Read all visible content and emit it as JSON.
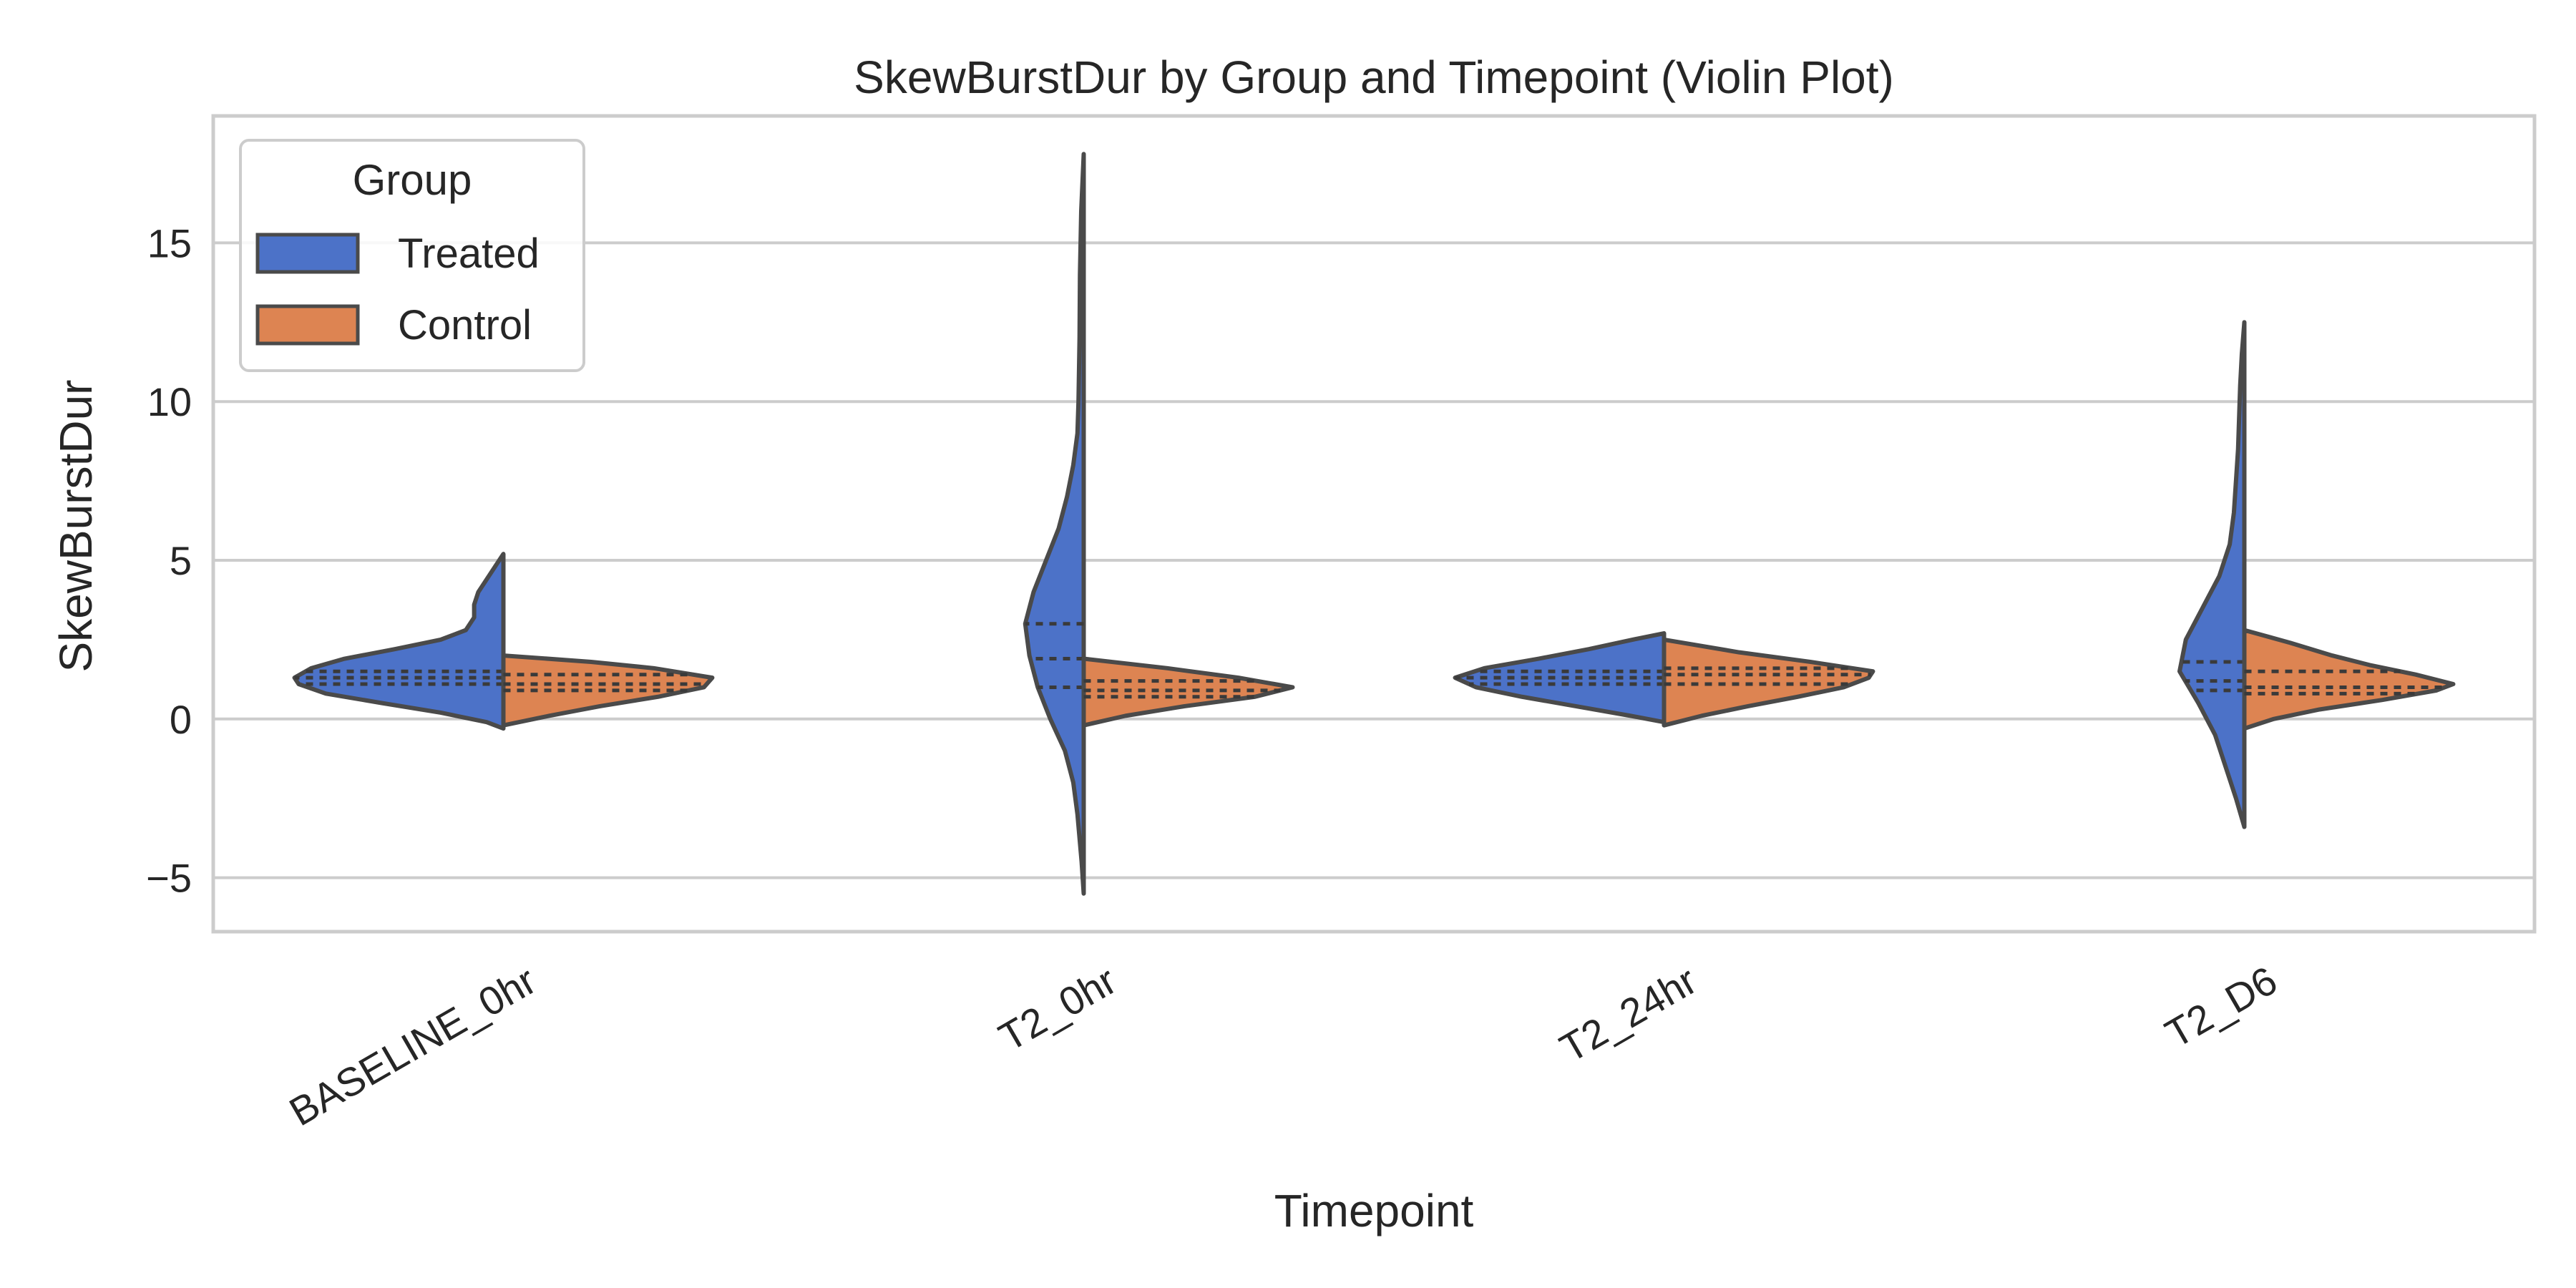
{
  "chart_data": {
    "type": "violin",
    "title": "SkewBurstDur by Group and Timepoint (Violin Plot)",
    "xlabel": "Timepoint",
    "ylabel": "SkewBurstDur",
    "categories": [
      "BASELINE_0hr",
      "T2_0hr",
      "T2_24hr",
      "T2_D6"
    ],
    "ylim": [
      -6.7,
      19.0
    ],
    "yticks": [
      -5,
      0,
      5,
      10,
      15
    ],
    "ytick_labels": [
      "−5",
      "0",
      "5",
      "10",
      "15"
    ],
    "grid": true,
    "split": true,
    "inner": "quartile",
    "legend": {
      "title": "Group",
      "placement": "top-left"
    },
    "colors": {
      "Treated": "#4c72c8",
      "Control": "#dd8452"
    },
    "series": [
      {
        "name": "Treated",
        "side": "left",
        "violins": [
          {
            "category": "BASELINE_0hr",
            "min": -0.3,
            "max": 5.2,
            "quartiles": [
              1.1,
              1.3,
              1.5
            ],
            "profile": [
              [
                -0.3,
                0.0
              ],
              [
                -0.1,
                0.08
              ],
              [
                0.2,
                0.3
              ],
              [
                0.5,
                0.58
              ],
              [
                0.8,
                0.85
              ],
              [
                1.1,
                0.98
              ],
              [
                1.3,
                1.0
              ],
              [
                1.6,
                0.92
              ],
              [
                1.9,
                0.76
              ],
              [
                2.2,
                0.52
              ],
              [
                2.5,
                0.3
              ],
              [
                2.8,
                0.18
              ],
              [
                3.2,
                0.14
              ],
              [
                3.6,
                0.14
              ],
              [
                4.0,
                0.12
              ],
              [
                4.4,
                0.08
              ],
              [
                4.8,
                0.04
              ],
              [
                5.2,
                0.0
              ]
            ]
          },
          {
            "category": "T2_0hr",
            "min": -5.5,
            "max": 17.8,
            "quartiles": [
              1.0,
              1.9,
              3.0
            ],
            "profile": [
              [
                -5.5,
                0.0
              ],
              [
                -4.5,
                0.01
              ],
              [
                -3.0,
                0.03
              ],
              [
                -2.0,
                0.05
              ],
              [
                -1.0,
                0.09
              ],
              [
                0.0,
                0.16
              ],
              [
                1.0,
                0.22
              ],
              [
                2.0,
                0.26
              ],
              [
                3.0,
                0.28
              ],
              [
                4.0,
                0.24
              ],
              [
                5.0,
                0.18
              ],
              [
                6.0,
                0.12
              ],
              [
                7.0,
                0.08
              ],
              [
                8.0,
                0.05
              ],
              [
                9.0,
                0.03
              ],
              [
                10.0,
                0.025
              ],
              [
                12.0,
                0.02
              ],
              [
                14.0,
                0.018
              ],
              [
                16.0,
                0.012
              ],
              [
                17.8,
                0.0
              ]
            ]
          },
          {
            "category": "T2_24hr",
            "min": -0.1,
            "max": 2.7,
            "quartiles": [
              1.1,
              1.3,
              1.5
            ],
            "profile": [
              [
                -0.1,
                0.0
              ],
              [
                0.1,
                0.16
              ],
              [
                0.4,
                0.42
              ],
              [
                0.7,
                0.68
              ],
              [
                1.0,
                0.9
              ],
              [
                1.3,
                1.0
              ],
              [
                1.6,
                0.86
              ],
              [
                1.9,
                0.6
              ],
              [
                2.2,
                0.36
              ],
              [
                2.5,
                0.15
              ],
              [
                2.7,
                0.0
              ]
            ]
          },
          {
            "category": "T2_D6",
            "min": -3.4,
            "max": 12.5,
            "quartiles": [
              0.9,
              1.2,
              1.8
            ],
            "profile": [
              [
                -3.4,
                0.0
              ],
              [
                -2.5,
                0.04
              ],
              [
                -1.5,
                0.09
              ],
              [
                -0.5,
                0.14
              ],
              [
                0.5,
                0.22
              ],
              [
                1.5,
                0.31
              ],
              [
                2.5,
                0.28
              ],
              [
                3.5,
                0.2
              ],
              [
                4.5,
                0.12
              ],
              [
                5.5,
                0.07
              ],
              [
                6.5,
                0.05
              ],
              [
                7.5,
                0.04
              ],
              [
                8.5,
                0.03
              ],
              [
                9.5,
                0.025
              ],
              [
                10.5,
                0.02
              ],
              [
                11.5,
                0.012
              ],
              [
                12.5,
                0.0
              ]
            ]
          }
        ]
      },
      {
        "name": "Control",
        "side": "right",
        "violins": [
          {
            "category": "BASELINE_0hr",
            "min": -0.2,
            "max": 2.0,
            "quartiles": [
              0.9,
              1.1,
              1.4
            ],
            "profile": [
              [
                -0.2,
                0.0
              ],
              [
                0.1,
                0.22
              ],
              [
                0.4,
                0.46
              ],
              [
                0.7,
                0.74
              ],
              [
                1.0,
                0.96
              ],
              [
                1.3,
                1.0
              ],
              [
                1.6,
                0.72
              ],
              [
                1.8,
                0.42
              ],
              [
                2.0,
                0.0
              ]
            ]
          },
          {
            "category": "T2_0hr",
            "min": -0.2,
            "max": 1.9,
            "quartiles": [
              0.7,
              0.9,
              1.2
            ],
            "profile": [
              [
                -0.2,
                0.0
              ],
              [
                0.1,
                0.2
              ],
              [
                0.4,
                0.48
              ],
              [
                0.7,
                0.82
              ],
              [
                1.0,
                1.0
              ],
              [
                1.3,
                0.74
              ],
              [
                1.6,
                0.4
              ],
              [
                1.9,
                0.0
              ]
            ]
          },
          {
            "category": "T2_24hr",
            "min": -0.2,
            "max": 2.5,
            "quartiles": [
              1.1,
              1.4,
              1.6
            ],
            "profile": [
              [
                -0.2,
                0.0
              ],
              [
                0.1,
                0.18
              ],
              [
                0.4,
                0.4
              ],
              [
                0.7,
                0.64
              ],
              [
                1.0,
                0.86
              ],
              [
                1.3,
                0.98
              ],
              [
                1.5,
                1.0
              ],
              [
                1.8,
                0.7
              ],
              [
                2.1,
                0.36
              ],
              [
                2.5,
                0.0
              ]
            ]
          },
          {
            "category": "T2_D6",
            "min": -0.3,
            "max": 2.8,
            "quartiles": [
              0.8,
              1.0,
              1.5
            ],
            "profile": [
              [
                -0.3,
                0.0
              ],
              [
                0.0,
                0.14
              ],
              [
                0.3,
                0.36
              ],
              [
                0.6,
                0.66
              ],
              [
                0.9,
                0.92
              ],
              [
                1.1,
                1.0
              ],
              [
                1.4,
                0.82
              ],
              [
                1.7,
                0.6
              ],
              [
                2.0,
                0.42
              ],
              [
                2.4,
                0.22
              ],
              [
                2.8,
                0.0
              ]
            ]
          }
        ]
      }
    ]
  }
}
